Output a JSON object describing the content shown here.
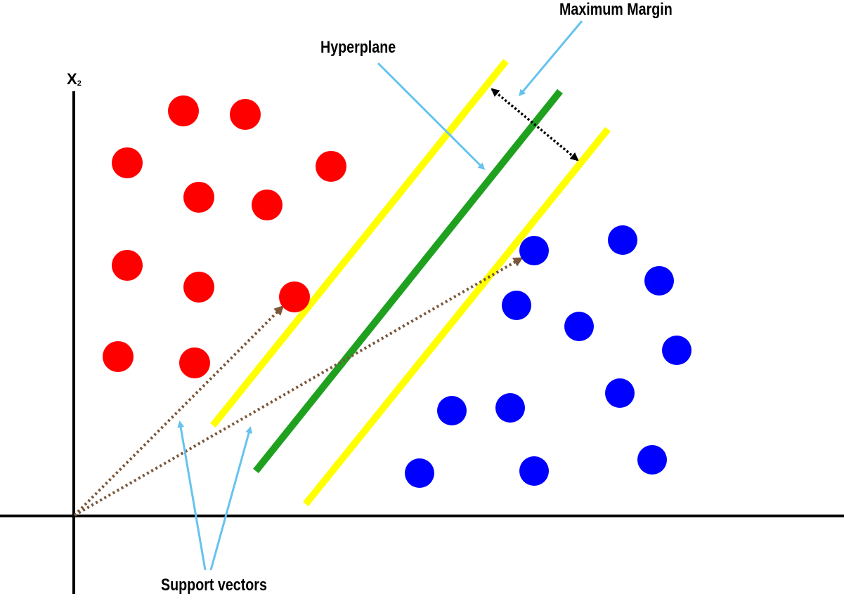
{
  "labels": {
    "maximum_margin": "Maximum Margin",
    "hyperplane": "Hyperplane",
    "support_vectors": "Support vectors",
    "x2_axis_main": "X",
    "x2_axis_sub": "2"
  },
  "colors": {
    "background": "#ffffff",
    "axis": "#000000",
    "class_a_points": "#ff0000",
    "class_b_points": "#0000ff",
    "hyperplane": "#1fa11f",
    "margin_lines": "#ffff00",
    "callout_arrows": "#66c3ee",
    "support_vector_arrows": "#7b5638",
    "margin_arrow": "#000000"
  }
}
